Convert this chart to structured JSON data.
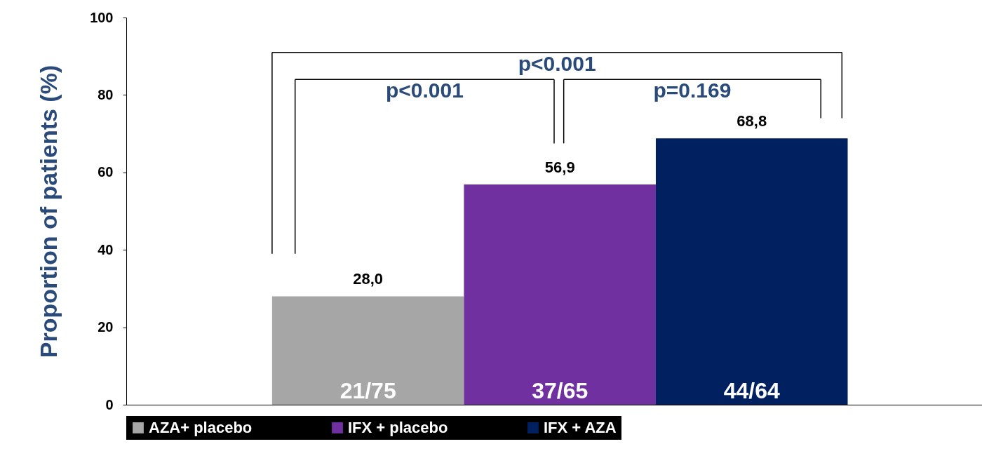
{
  "chart_data": {
    "type": "bar",
    "ylabel": "Proportion of patients (%)",
    "categories": [
      null,
      null,
      null
    ],
    "series": [
      {
        "name": "AZA+ placebo",
        "color": "#a6a6a6",
        "values": [
          28.0,
          null,
          null
        ],
        "value_labels": [
          "28,0",
          null,
          null
        ]
      },
      {
        "name": "IFX + placebo",
        "color": "#7030a0",
        "values": [
          null,
          56.9,
          null
        ],
        "value_labels": [
          null,
          "56,9",
          null
        ]
      },
      {
        "name": "IFX + AZA",
        "color": "#002060",
        "values": [
          null,
          null,
          68.8
        ],
        "value_labels": [
          null,
          null,
          "68,8"
        ]
      }
    ],
    "ylim": [
      0,
      100
    ],
    "yticks": [
      0,
      20,
      40,
      60,
      80,
      100
    ],
    "legend": "bottom",
    "annotations": [
      "p<0.001",
      "p<0.001",
      "p=0.169",
      "21/75",
      "37/65",
      "44/64"
    ]
  }
}
